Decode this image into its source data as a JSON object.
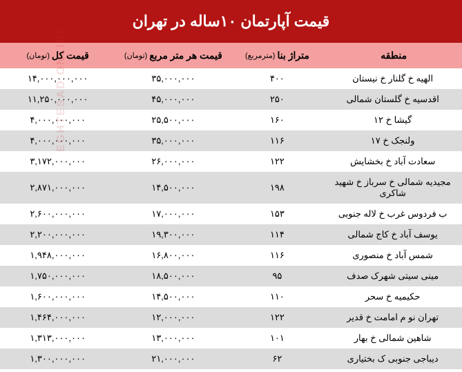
{
  "table": {
    "title": "قیمت آپارتمان ۱۰ساله در تهران",
    "title_bg": "#b31414",
    "title_color": "#ffffff",
    "header_bg": "#f4a0a0",
    "row_even_bg": "#ffffff",
    "row_odd_bg": "#dcdcdc",
    "columns": [
      {
        "label": "منطقه",
        "sublabel": "",
        "width": "30%"
      },
      {
        "label": "متراژ بنا",
        "sublabel": "(مترمربع)",
        "width": "20%"
      },
      {
        "label": "قیمت هر متر مربع",
        "sublabel": "(تومان)",
        "width": "25%"
      },
      {
        "label": "قیمت کل",
        "sublabel": "(تومان)",
        "width": "25%"
      }
    ],
    "rows": [
      {
        "region": "الهیه خ گلنار خ نیستان",
        "area": "۴۰۰",
        "price_per": "۳۵,۰۰۰,۰۰۰",
        "total": "۱۴,۰۰۰,۰۰۰,۰۰۰"
      },
      {
        "region": "اقدسیه خ گلستان شمالی",
        "area": "۲۵۰",
        "price_per": "۴۵,۰۰۰,۰۰۰",
        "total": "۱۱,۲۵۰,۰۰۰,۰۰۰"
      },
      {
        "region": "گیشا خ ۱۲",
        "area": "۱۶۰",
        "price_per": "۲۵,۵۰۰,۰۰۰",
        "total": "۴,۰۰۰,۰۰۰,۰۰۰"
      },
      {
        "region": "ولنجک خ ۱۷",
        "area": "۱۱۶",
        "price_per": "۳۵,۰۰۰,۰۰۰",
        "total": "۴,۰۰۰,۰۰۰,۰۰۰"
      },
      {
        "region": "سعادت آباد خ بخشایش",
        "area": "۱۲۲",
        "price_per": "۲۶,۰۰۰,۰۰۰",
        "total": "۳,۱۷۲,۰۰۰,۰۰۰"
      },
      {
        "region": "مجیدیه شمالی خ سرباز خ شهید شاکری",
        "area": "۱۹۸",
        "price_per": "۱۴,۵۰۰,۰۰۰",
        "total": "۲,۸۷۱,۰۰۰,۰۰۰"
      },
      {
        "region": "ب فردوس غرب خ لاله جنوبی",
        "area": "۱۵۳",
        "price_per": "۱۷,۰۰۰,۰۰۰",
        "total": "۲,۶۰۰,۰۰۰,۰۰۰"
      },
      {
        "region": "یوسف آباد خ کاج شمالی",
        "area": "۱۱۴",
        "price_per": "۱۹,۳۰۰,۰۰۰",
        "total": "۲,۲۰۰,۰۰۰,۰۰۰"
      },
      {
        "region": "شمس آباد خ منصوری",
        "area": "۱۱۶",
        "price_per": "۱۶,۸۰۰,۰۰۰",
        "total": "۱,۹۴۸,۰۰۰,۰۰۰"
      },
      {
        "region": "مینی سیتی شهرک صدف",
        "area": "۹۵",
        "price_per": "۱۸,۵۰۰,۰۰۰",
        "total": "۱,۷۵۰,۰۰۰,۰۰۰"
      },
      {
        "region": "حکیمیه خ سحر",
        "area": "۱۱۰",
        "price_per": "۱۴,۵۰۰,۰۰۰",
        "total": "۱,۶۰۰,۰۰۰,۰۰۰"
      },
      {
        "region": "تهران نو م امامت خ قدیر",
        "area": "۱۲۲",
        "price_per": "۱۲,۰۰۰,۰۰۰",
        "total": "۱,۴۶۴,۰۰۰,۰۰۰"
      },
      {
        "region": "شاهین شمالی خ بهار",
        "area": "۱۰۱",
        "price_per": "۱۳,۰۰۰,۰۰۰",
        "total": "۱,۳۱۳,۰۰۰,۰۰۰"
      },
      {
        "region": "دیباجی جنوبی ک بختیاری",
        "area": "۶۲",
        "price_per": "۲۱,۰۰۰,۰۰۰",
        "total": "۱,۳۰۰,۰۰۰,۰۰۰"
      }
    ]
  },
  "watermark": "EGHTESAD ONLINE"
}
